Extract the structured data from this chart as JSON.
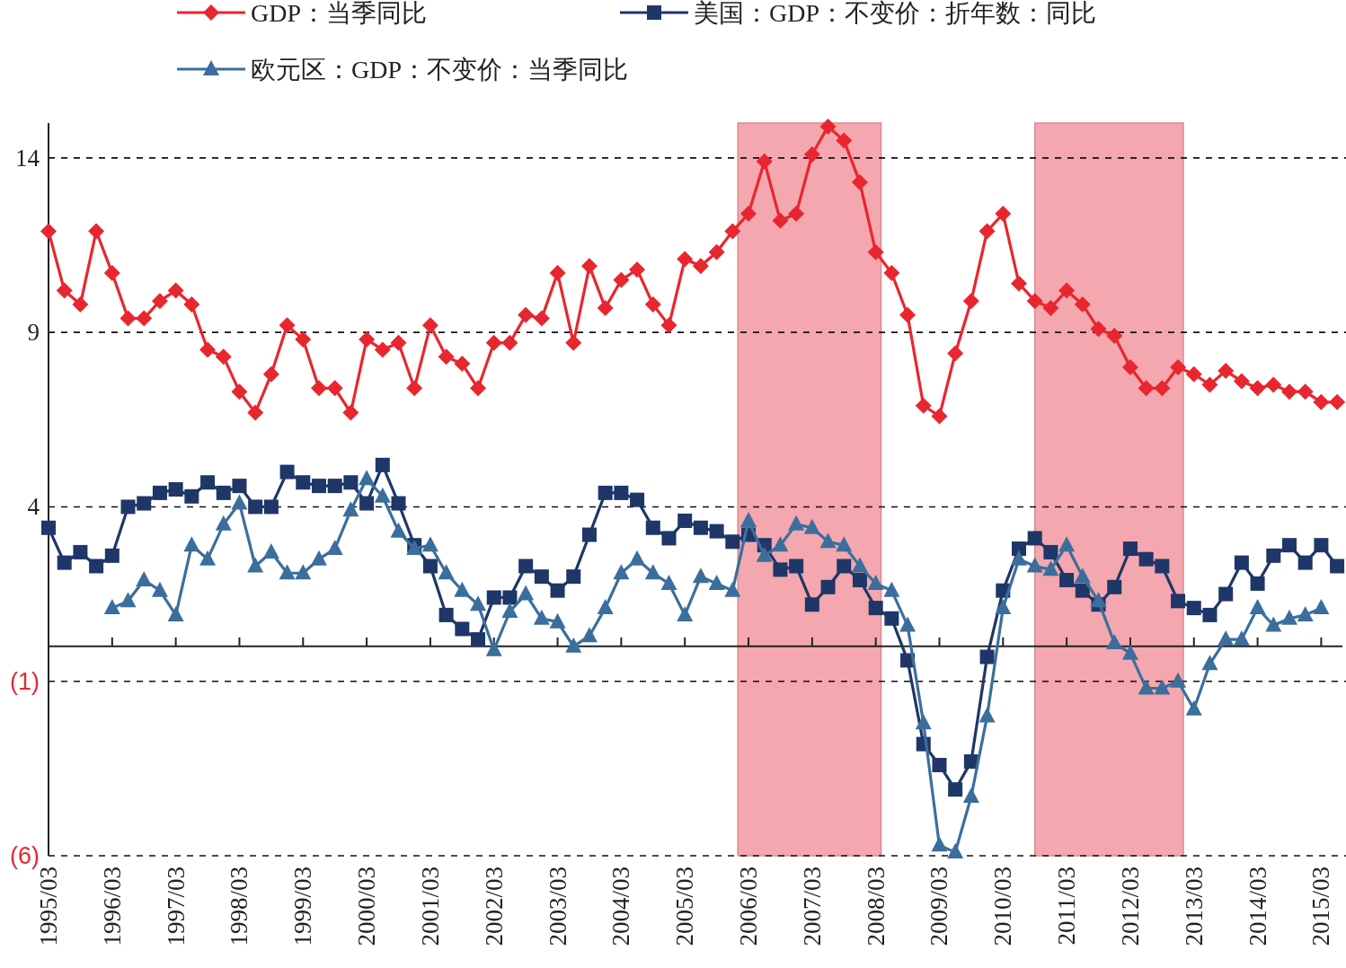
{
  "chart_data": {
    "type": "line",
    "x": [
      "1995-03",
      "1995-06",
      "1995-09",
      "1995-12",
      "1996-03",
      "1996-06",
      "1996-09",
      "1996-12",
      "1997-03",
      "1997-06",
      "1997-09",
      "1997-12",
      "1998-03",
      "1998-06",
      "1998-09",
      "1998-12",
      "1999-03",
      "1999-06",
      "1999-09",
      "1999-12",
      "2000-03",
      "2000-06",
      "2000-09",
      "2000-12",
      "2001-03",
      "2001-06",
      "2001-09",
      "2001-12",
      "2002-03",
      "2002-06",
      "2002-09",
      "2002-12",
      "2003-03",
      "2003-06",
      "2003-09",
      "2003-12",
      "2004-03",
      "2004-06",
      "2004-09",
      "2004-12",
      "2005-03",
      "2005-06",
      "2005-09",
      "2005-12",
      "2006-03",
      "2006-06",
      "2006-09",
      "2006-12",
      "2007-03",
      "2007-06",
      "2007-09",
      "2007-12",
      "2008-03",
      "2008-06",
      "2008-09",
      "2008-12",
      "2009-03",
      "2009-06",
      "2009-09",
      "2009-12",
      "2010-03",
      "2010-06",
      "2010-09",
      "2010-12",
      "2011-03",
      "2011-06",
      "2011-09",
      "2011-12",
      "2012-03",
      "2012-06",
      "2012-09",
      "2012-12",
      "2013-03",
      "2013-06",
      "2013-09",
      "2013-12",
      "2014-03",
      "2014-06",
      "2014-09",
      "2014-12",
      "2015-03",
      "2015-06"
    ],
    "series": [
      {
        "name": "GDP：当季同比",
        "color": "#e8262f",
        "marker": "diamond",
        "values": [
          11.9,
          10.2,
          9.8,
          11.9,
          10.7,
          9.4,
          9.4,
          9.9,
          10.2,
          9.8,
          8.5,
          8.3,
          7.3,
          6.7,
          7.8,
          9.2,
          8.8,
          7.4,
          7.4,
          6.7,
          8.8,
          8.5,
          8.7,
          7.4,
          9.2,
          8.3,
          8.1,
          7.4,
          8.7,
          8.7,
          9.5,
          9.4,
          10.7,
          8.7,
          10.9,
          9.7,
          10.5,
          10.8,
          9.8,
          9.2,
          11.1,
          10.9,
          11.3,
          11.9,
          12.4,
          13.9,
          12.2,
          12.4,
          14.1,
          14.9,
          14.5,
          13.3,
          11.3,
          10.7,
          9.5,
          6.9,
          6.6,
          8.4,
          9.9,
          11.9,
          12.4,
          10.4,
          9.9,
          9.7,
          10.2,
          9.8,
          9.1,
          8.9,
          8.0,
          7.4,
          7.4,
          8.0,
          7.8,
          7.5,
          7.9,
          7.6,
          7.4,
          7.5,
          7.3,
          7.3,
          7.0,
          7.0
        ]
      },
      {
        "name": "美国：GDP：不变价：折年数：同比",
        "color": "#1f3668",
        "marker": "square",
        "values": [
          3.4,
          2.4,
          2.7,
          2.3,
          2.6,
          4.0,
          4.1,
          4.4,
          4.5,
          4.3,
          4.7,
          4.4,
          4.6,
          4.0,
          4.0,
          5.0,
          4.7,
          4.6,
          4.6,
          4.7,
          4.1,
          5.2,
          4.1,
          2.9,
          2.3,
          0.9,
          0.5,
          0.2,
          1.4,
          1.4,
          2.3,
          2.0,
          1.6,
          2.0,
          3.2,
          4.4,
          4.4,
          4.2,
          3.4,
          3.1,
          3.6,
          3.4,
          3.3,
          3.0,
          3.2,
          2.9,
          2.2,
          2.3,
          1.2,
          1.7,
          2.3,
          1.9,
          1.1,
          0.8,
          -0.4,
          -2.8,
          -3.4,
          -4.1,
          -3.3,
          -0.3,
          1.6,
          2.8,
          3.1,
          2.7,
          1.9,
          1.6,
          1.2,
          1.7,
          2.8,
          2.5,
          2.3,
          1.3,
          1.1,
          0.9,
          1.5,
          2.4,
          1.8,
          2.6,
          2.9,
          2.4,
          2.9,
          2.3
        ]
      },
      {
        "name": "欧元区：GDP：不变价：当季同比",
        "color": "#3b6e9c",
        "marker": "triangle",
        "values": [
          null,
          null,
          null,
          null,
          1.1,
          1.3,
          1.9,
          1.6,
          0.9,
          2.9,
          2.5,
          3.5,
          4.1,
          2.3,
          2.7,
          2.1,
          2.1,
          2.5,
          2.8,
          3.9,
          4.8,
          4.3,
          3.3,
          2.8,
          2.9,
          2.1,
          1.6,
          1.2,
          -0.1,
          1.0,
          1.5,
          0.8,
          0.7,
          0.0,
          0.3,
          1.1,
          2.1,
          2.5,
          2.1,
          1.8,
          0.9,
          2.0,
          1.8,
          1.6,
          3.6,
          2.6,
          2.9,
          3.5,
          3.4,
          3.0,
          2.9,
          2.3,
          1.8,
          1.6,
          0.6,
          -2.2,
          -5.7,
          -5.9,
          -4.3,
          -2.0,
          1.1,
          2.5,
          2.3,
          2.2,
          2.9,
          2.0,
          1.3,
          0.1,
          -0.2,
          -1.2,
          -1.2,
          -1.0,
          -1.8,
          -0.5,
          0.2,
          0.2,
          1.1,
          0.6,
          0.8,
          0.9,
          1.1,
          null
        ]
      }
    ],
    "xlim": [
      "1995-03",
      "2015-07"
    ],
    "xticks": [
      {
        "value": "1995-03",
        "label": "1995/03"
      },
      {
        "value": "1996-03",
        "label": "1996/03"
      },
      {
        "value": "1997-03",
        "label": "1997/03"
      },
      {
        "value": "1998-03",
        "label": "1998/03"
      },
      {
        "value": "1999-03",
        "label": "1999/03"
      },
      {
        "value": "2000-03",
        "label": "2000/03"
      },
      {
        "value": "2001-03",
        "label": "2001/03"
      },
      {
        "value": "2002-03",
        "label": "2002/03"
      },
      {
        "value": "2003-03",
        "label": "2003/03"
      },
      {
        "value": "2004-03",
        "label": "2004/03"
      },
      {
        "value": "2005-03",
        "label": "2005/03"
      },
      {
        "value": "2006-03",
        "label": "2006/03"
      },
      {
        "value": "2007-03",
        "label": "2007/03"
      },
      {
        "value": "2008-03",
        "label": "2008/03"
      },
      {
        "value": "2009-03",
        "label": "2009/03"
      },
      {
        "value": "2010-03",
        "label": "2010/03"
      },
      {
        "value": "2011-03",
        "label": "2011/03"
      },
      {
        "value": "2012-03",
        "label": "2012/03"
      },
      {
        "value": "2013-03",
        "label": "2013/03"
      },
      {
        "value": "2014-03",
        "label": "2014/03"
      },
      {
        "value": "2015-03",
        "label": "2015/03"
      }
    ],
    "ylim": [
      -6,
      15
    ],
    "yticks": [
      14,
      9,
      4,
      {
        "value": -1,
        "label": "(1)"
      },
      {
        "value": -6,
        "label": "(6)"
      }
    ],
    "bands": [
      {
        "axis": "x",
        "from": "2006-01",
        "to": "2008-04",
        "color": "#f4a7ae"
      },
      {
        "axis": "x",
        "from": "2010-09",
        "to": "2013-01",
        "color": "#f4a7ae"
      }
    ],
    "grid": "y",
    "line_style": "solid",
    "legend": "top"
  }
}
